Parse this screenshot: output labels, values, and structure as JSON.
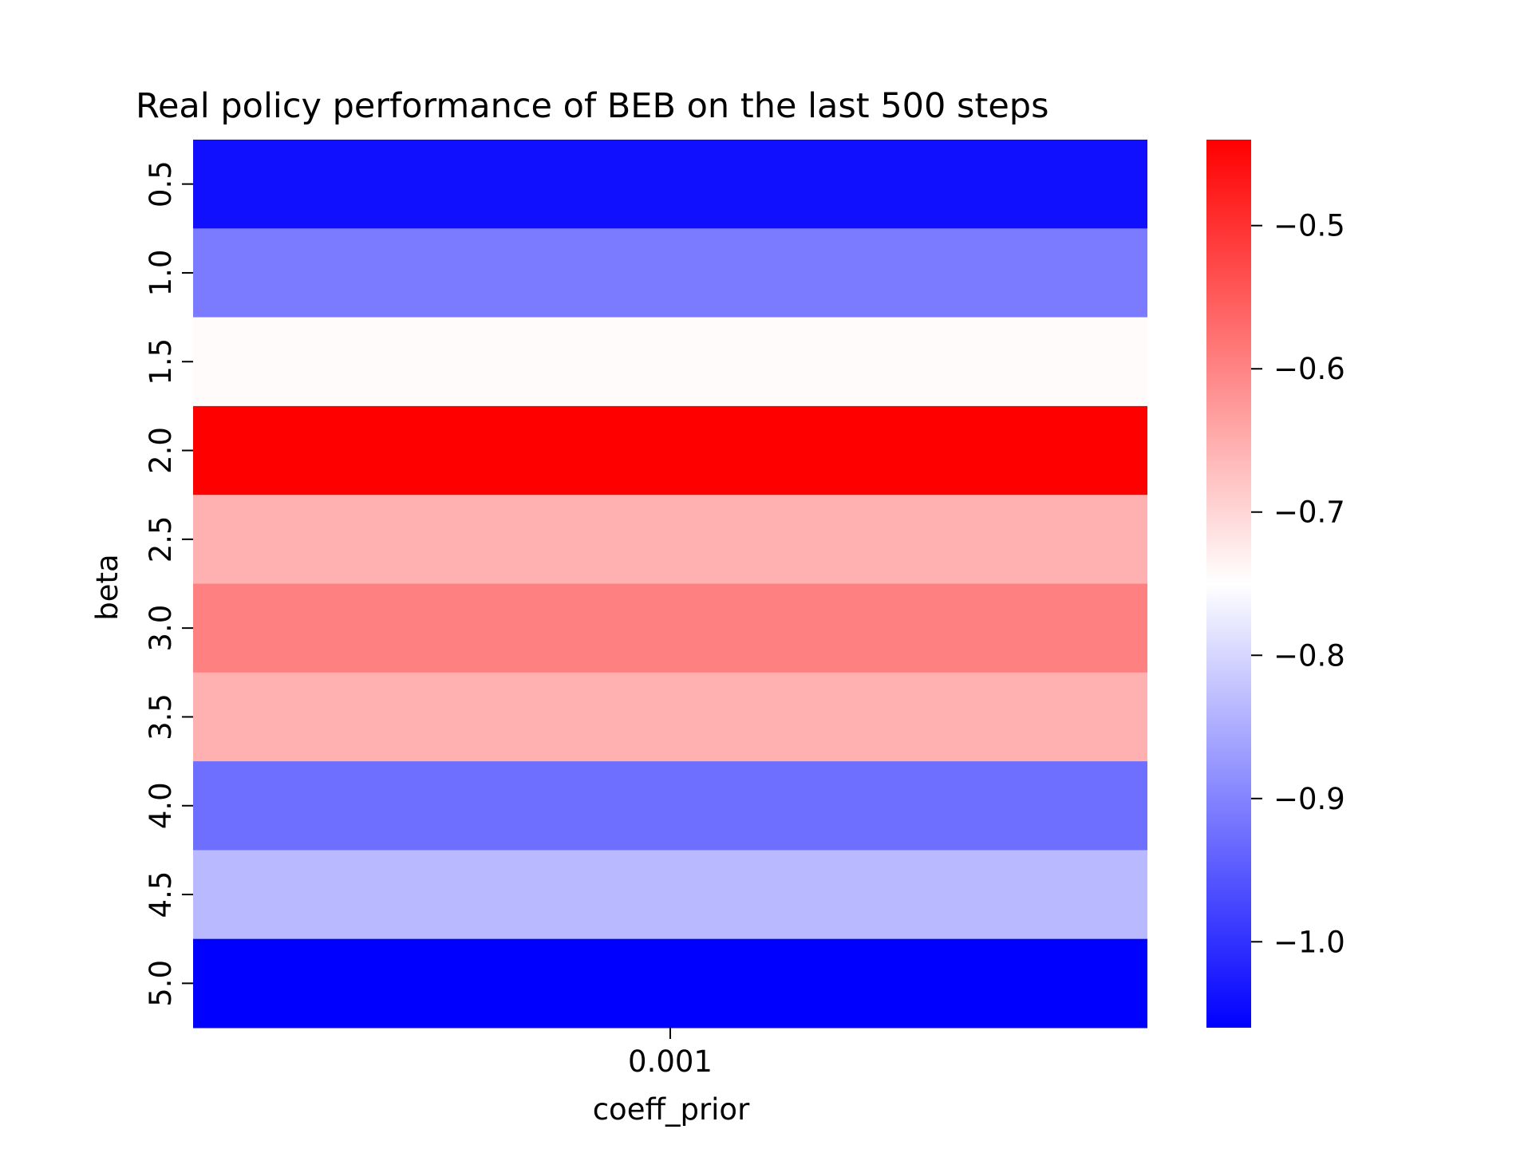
{
  "chart_data": {
    "type": "heatmap",
    "title": "Real policy performance of BEB on the last 500 steps",
    "xlabel": "coeff_prior",
    "ylabel": "beta",
    "x_categories": [
      "0.001"
    ],
    "y_categories": [
      "0.5",
      "1.0",
      "1.5",
      "2.0",
      "2.5",
      "3.0",
      "3.5",
      "4.0",
      "4.5",
      "5.0"
    ],
    "values": [
      [
        -1.04
      ],
      [
        -0.91
      ],
      [
        -0.745
      ],
      [
        -0.44
      ],
      [
        -0.655
      ],
      [
        -0.595
      ],
      [
        -0.655
      ],
      [
        -0.925
      ],
      [
        -0.835
      ],
      [
        -1.06
      ]
    ],
    "colormap": "bwr",
    "colormap_colors": {
      "low": "#0000ff",
      "mid": "#ffffff",
      "high": "#ff0000"
    },
    "colorbar": {
      "vmin": -1.06,
      "vmax": -0.44,
      "ticks": [
        -0.5,
        -0.6,
        -0.7,
        -0.8,
        -0.9,
        -1.0
      ],
      "tick_labels": [
        "−0.5",
        "−0.6",
        "−0.7",
        "−0.8",
        "−0.9",
        "−1.0"
      ]
    }
  }
}
